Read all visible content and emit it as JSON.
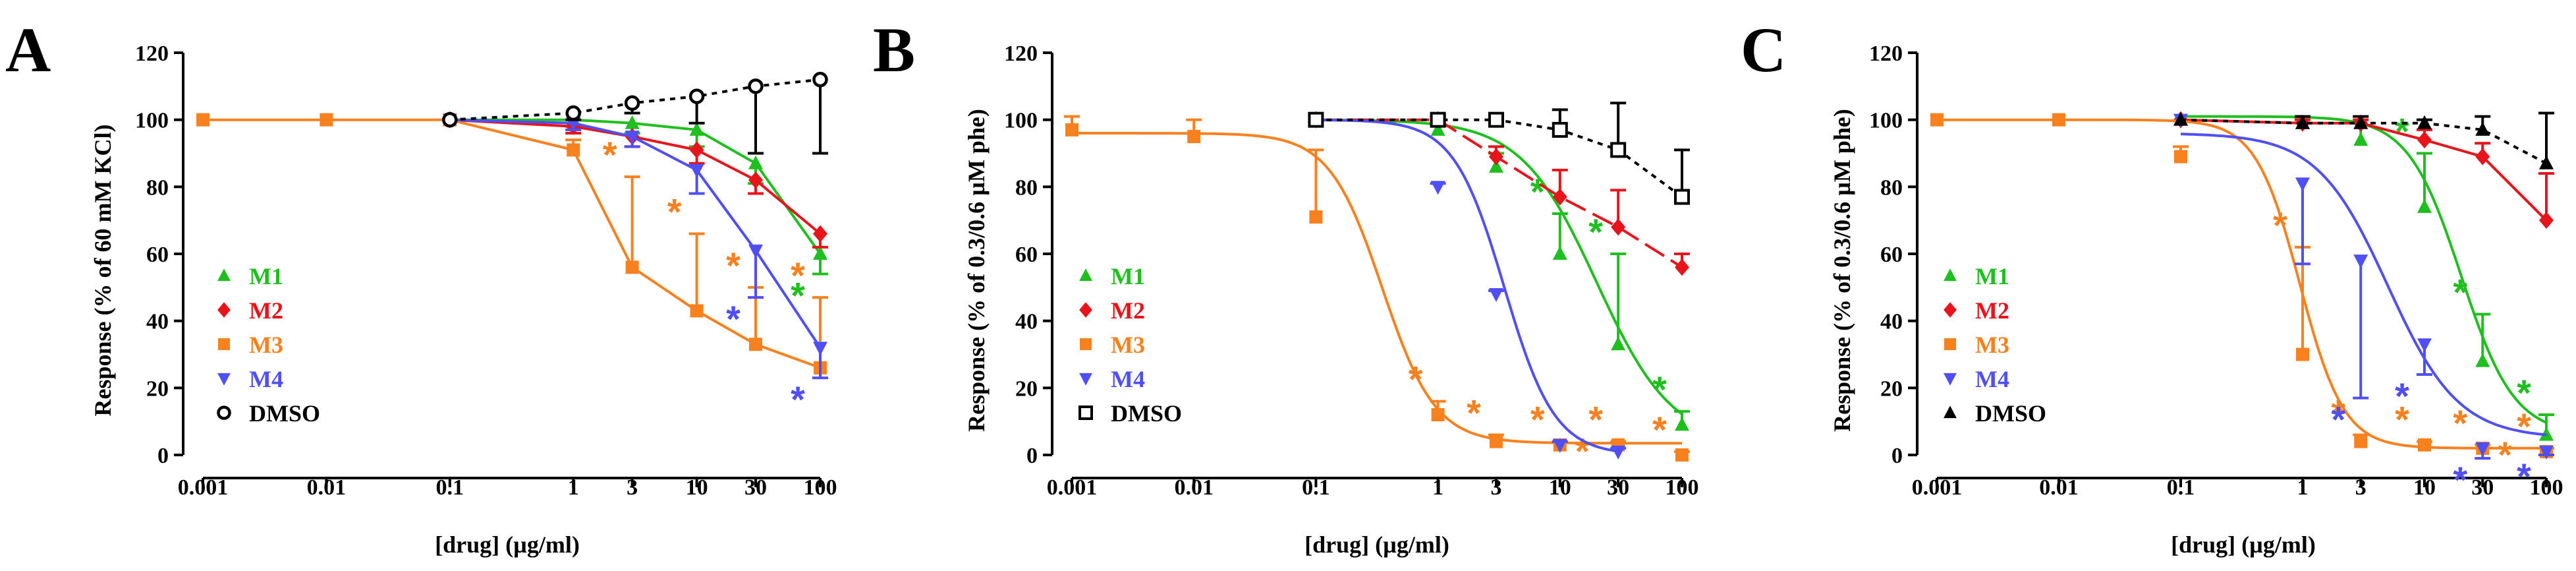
{
  "chart_data": [
    {
      "type": "line",
      "panel": "A",
      "xscale": "log",
      "xlim": [
        0.001,
        100
      ],
      "ylim": [
        0,
        120
      ],
      "xlabel": "[drug] (µg/ml)",
      "ylabel": "Response (% of 60 mM KCl)",
      "xticks": [
        "0.001",
        "0.01",
        "0.1",
        "1",
        "3",
        "10",
        "30",
        "100"
      ],
      "xtick_values": [
        0.001,
        0.01,
        0.1,
        1,
        3,
        10,
        30,
        100
      ],
      "yticks": [
        "0",
        "20",
        "40",
        "60",
        "80",
        "100",
        "120"
      ],
      "ytick_values": [
        0,
        20,
        40,
        60,
        80,
        100,
        120
      ],
      "legend_position": "bottom-left",
      "series": [
        {
          "name": "M1",
          "color": "#1fbf1f",
          "marker": "triangle-up",
          "line": "connect",
          "err_dir": "down",
          "x": [
            0.1,
            1,
            3,
            10,
            30,
            100
          ],
          "y": [
            100,
            100,
            99,
            97,
            87,
            60
          ],
          "err": [
            0,
            2,
            3,
            5,
            6,
            6
          ],
          "stars": [
            0,
            0,
            0,
            0,
            0,
            1
          ]
        },
        {
          "name": "M2",
          "color": "#e8141b",
          "marker": "diamond",
          "line": "connect",
          "err_dir": "down",
          "x": [
            0.1,
            1,
            3,
            10,
            30,
            100
          ],
          "y": [
            100,
            98,
            95,
            91,
            82,
            66
          ],
          "err": [
            0,
            2,
            3,
            4,
            4,
            4
          ],
          "stars": [
            0,
            0,
            0,
            0,
            0,
            0
          ]
        },
        {
          "name": "M3",
          "color": "#f7811f",
          "marker": "square",
          "line": "connect",
          "err_dir": "up",
          "x": [
            0.001,
            0.01,
            0.1,
            1,
            3,
            10,
            30,
            100
          ],
          "y": [
            100,
            100,
            100,
            91,
            56,
            43,
            33,
            26
          ],
          "err": [
            0,
            0,
            0,
            3,
            27,
            23,
            17,
            21
          ],
          "stars": [
            0,
            0,
            0,
            0,
            1,
            1,
            1,
            1
          ]
        },
        {
          "name": "M4",
          "color": "#4f4ff5",
          "marker": "triangle-down",
          "line": "connect",
          "err_dir": "down",
          "x": [
            0.1,
            1,
            3,
            10,
            30,
            100
          ],
          "y": [
            100,
            99,
            95,
            85,
            61,
            32
          ],
          "err": [
            0,
            2,
            3,
            7,
            14,
            9
          ],
          "stars": [
            0,
            0,
            0,
            0,
            1,
            1
          ]
        },
        {
          "name": "DMSO",
          "color": "#000000",
          "marker": "circle-open",
          "line": "dashed",
          "err_dir": "down",
          "x": [
            0.1,
            1,
            3,
            10,
            30,
            100
          ],
          "y": [
            100,
            102,
            105,
            107,
            110,
            112
          ],
          "err": [
            0,
            2,
            3,
            8,
            20,
            22
          ],
          "stars": [
            0,
            0,
            0,
            0,
            0,
            0
          ]
        }
      ]
    },
    {
      "type": "line",
      "panel": "B",
      "xscale": "log",
      "xlim": [
        0.001,
        100
      ],
      "ylim": [
        0,
        120
      ],
      "xlabel": "[drug] (µg/ml)",
      "ylabel": "Response (% of 0.3/0.6 µM  phe)",
      "xticks": [
        "0.001",
        "0.01",
        "0.1",
        "1",
        "3",
        "10",
        "30",
        "100"
      ],
      "xtick_values": [
        0.001,
        0.01,
        0.1,
        1,
        3,
        10,
        30,
        100
      ],
      "yticks": [
        "0",
        "20",
        "40",
        "60",
        "80",
        "100",
        "120"
      ],
      "ytick_values": [
        0,
        20,
        40,
        60,
        80,
        100,
        120
      ],
      "legend_position": "bottom-left",
      "series": [
        {
          "name": "M1",
          "color": "#1fbf1f",
          "marker": "triangle-up",
          "line": "sigmoid",
          "err_dir": "up",
          "fit": {
            "top": 100,
            "bottom": 3,
            "ec50": 20,
            "hill": 1.4
          },
          "x": [
            0.1,
            1,
            3,
            10,
            30,
            100
          ],
          "y": [
            100,
            97,
            86,
            60,
            33,
            9
          ],
          "err": [
            0,
            2,
            4,
            12,
            27,
            4
          ],
          "stars": [
            0,
            0,
            0,
            1,
            1,
            1
          ]
        },
        {
          "name": "M2",
          "color": "#e8141b",
          "marker": "diamond",
          "line": "dashed-connect",
          "err_dir": "up",
          "x": [
            0.1,
            1,
            3,
            10,
            30,
            100
          ],
          "y": [
            100,
            100,
            89,
            77,
            68,
            56
          ],
          "err": [
            0,
            1,
            3,
            8,
            11,
            4
          ],
          "stars": [
            0,
            0,
            0,
            0,
            0,
            0
          ]
        },
        {
          "name": "M3",
          "color": "#f7811f",
          "marker": "square",
          "line": "sigmoid",
          "err_dir": "up",
          "fit": {
            "top": 96,
            "bottom": 3.5,
            "ec50": 0.35,
            "hill": 2.0
          },
          "x": [
            0.001,
            0.01,
            0.1,
            1,
            3,
            10,
            30,
            100
          ],
          "y": [
            97,
            95,
            71,
            12,
            4,
            3,
            3,
            0
          ],
          "err": [
            4,
            5,
            20,
            4,
            2,
            1,
            1,
            1
          ],
          "stars": [
            0,
            0,
            0,
            1,
            1,
            2,
            1,
            1
          ]
        },
        {
          "name": "M4",
          "color": "#4f4ff5",
          "marker": "triangle-down",
          "line": "sigmoid",
          "err_dir": "up",
          "fit": {
            "top": 100,
            "bottom": 0,
            "ec50": 3.5,
            "hill": 2.1
          },
          "x": [
            0.1,
            1,
            3,
            10,
            30
          ],
          "y": [
            100,
            80,
            48,
            3,
            1
          ],
          "err": [
            0,
            1,
            1,
            1,
            1
          ],
          "stars": [
            0,
            0,
            0,
            0,
            0
          ]
        },
        {
          "name": "DMSO",
          "color": "#000000",
          "marker": "square-open",
          "line": "dashed",
          "err_dir": "up",
          "x": [
            0.1,
            1,
            3,
            10,
            30,
            100
          ],
          "y": [
            100,
            100,
            100,
            97,
            91,
            77
          ],
          "err": [
            0,
            1,
            1,
            6,
            14,
            14
          ],
          "stars": [
            0,
            0,
            0,
            0,
            0,
            0
          ]
        }
      ]
    },
    {
      "type": "line",
      "panel": "C",
      "xscale": "log",
      "xlim": [
        0.001,
        100
      ],
      "ylim": [
        0,
        120
      ],
      "xlabel": "[drug] (µg/ml)",
      "ylabel": "Response (% of 0.3/0.6 µM  phe)",
      "xticks": [
        "0.001",
        "0.01",
        "0.1",
        "1",
        "3",
        "10",
        "30",
        "100"
      ],
      "xtick_values": [
        0.001,
        0.01,
        0.1,
        1,
        3,
        10,
        30,
        100
      ],
      "yticks": [
        "0",
        "20",
        "40",
        "60",
        "80",
        "100",
        "120"
      ],
      "ytick_values": [
        0,
        20,
        40,
        60,
        80,
        100,
        120
      ],
      "legend_position": "bottom-left",
      "series": [
        {
          "name": "M1",
          "color": "#1fbf1f",
          "marker": "triangle-up",
          "line": "sigmoid",
          "err_dir": "up",
          "fit": {
            "top": 101,
            "bottom": 6,
            "ec50": 20,
            "hill": 2.0
          },
          "x": [
            0.1,
            1,
            3,
            10,
            30,
            100
          ],
          "y": [
            100,
            99,
            94,
            74,
            28,
            6
          ],
          "err": [
            0,
            2,
            6,
            16,
            14,
            6
          ],
          "stars": [
            0,
            0,
            0,
            1,
            1,
            1
          ]
        },
        {
          "name": "M2",
          "color": "#e8141b",
          "marker": "diamond",
          "line": "connect",
          "err_dir": "up",
          "x": [
            0.1,
            1,
            3,
            10,
            30,
            100
          ],
          "y": [
            100,
            99,
            99,
            94,
            89,
            70
          ],
          "err": [
            0,
            1,
            1,
            3,
            4,
            14
          ],
          "stars": [
            0,
            0,
            0,
            0,
            0,
            0
          ]
        },
        {
          "name": "M3",
          "color": "#f7811f",
          "marker": "square",
          "line": "sigmoid",
          "err_dir": "up",
          "fit": {
            "top": 100,
            "bottom": 2,
            "ec50": 0.95,
            "hill": 2.4
          },
          "x": [
            0.001,
            0.01,
            0.1,
            1,
            3,
            10,
            30,
            100
          ],
          "y": [
            100,
            100,
            89,
            30,
            4,
            3,
            2,
            1
          ],
          "err": [
            0,
            0,
            3,
            32,
            2,
            1,
            1,
            1
          ],
          "stars": [
            0,
            0,
            0,
            1,
            1,
            1,
            2,
            1
          ]
        },
        {
          "name": "M4",
          "color": "#4f4ff5",
          "marker": "triangle-down",
          "line": "sigmoid",
          "err_dir": "down",
          "fit": {
            "top": 96,
            "bottom": 5,
            "ec50": 5,
            "hill": 1.5
          },
          "x": [
            0.1,
            1,
            3,
            10,
            30,
            100
          ],
          "y": [
            100,
            81,
            58,
            33,
            2,
            1
          ],
          "err": [
            0,
            24,
            41,
            9,
            3,
            1
          ],
          "stars": [
            0,
            0,
            1,
            1,
            1,
            1
          ]
        },
        {
          "name": "DMSO",
          "color": "#000000",
          "marker": "triangle-up",
          "line": "dashed",
          "err_dir": "up",
          "x": [
            0.1,
            1,
            3,
            10,
            30,
            100
          ],
          "y": [
            100,
            99,
            99,
            99,
            97,
            87
          ],
          "err": [
            0,
            2,
            2,
            1,
            4,
            15
          ],
          "stars": [
            0,
            0,
            0,
            0,
            0,
            0
          ]
        }
      ]
    }
  ],
  "significance_mark": "*"
}
